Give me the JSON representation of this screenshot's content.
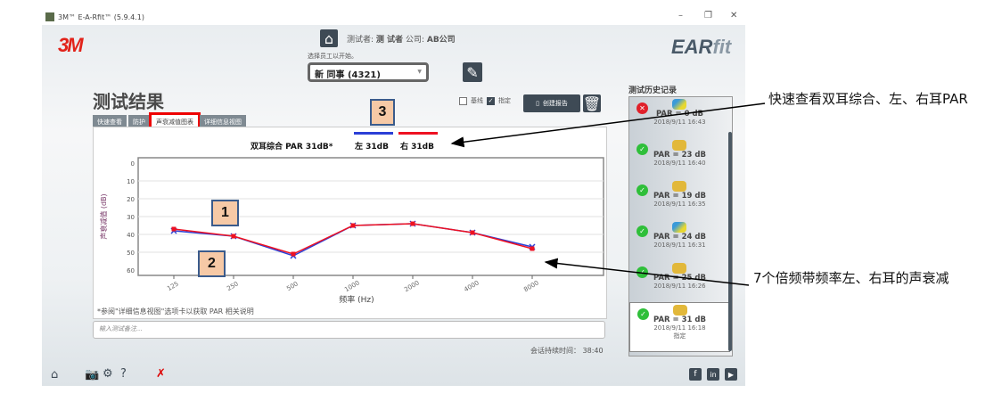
{
  "window": {
    "title": "3M™ E-A-Rfit™ (5.9.4.1)",
    "controls": [
      "–",
      "❐",
      "✕"
    ]
  },
  "header": {
    "logo": "3M",
    "brand_prefix": "EAR",
    "brand_suffix": "fit",
    "tester_label": "测试者:",
    "tester": "测 试者",
    "company_label": "公司:",
    "company": "AB公司",
    "select_prompt": "选择员工以开始。",
    "employee": "新 同事 (4321)"
  },
  "results": {
    "title": "测试结果",
    "baseline_label": "基线",
    "baseline_checked": false,
    "assigned_label": "指定",
    "assigned_checked": true,
    "create_report": "创建报告",
    "tabs": [
      {
        "label": "快速查看"
      },
      {
        "label": "防护"
      },
      {
        "label": "声衰减值图表",
        "active": true
      },
      {
        "label": "详细信息视图"
      }
    ],
    "summary": {
      "binaural": "双耳综合 PAR 31dB*",
      "left": "左 31dB",
      "right": "右 31dB"
    },
    "footnote": "*参阅\"详细信息视图\"选项卡以获取 PAR 相关说明",
    "notes_placeholder": "输入测试备注...",
    "session_label": "会话持续时间：",
    "session_time": "38:40"
  },
  "chart_data": {
    "type": "line",
    "xlabel": "频率 (Hz)",
    "ylabel": "声衰减值 (dB)",
    "categories": [
      "125",
      "250",
      "500",
      "1000",
      "2000",
      "4000",
      "8000"
    ],
    "ylim": [
      0,
      60
    ],
    "y_inverted": true,
    "yticks": [
      0,
      10,
      20,
      30,
      40,
      50,
      60
    ],
    "grid": true,
    "series": [
      {
        "name": "左",
        "color": "#2b3fd6",
        "marker": "x",
        "values": [
          38,
          41,
          52,
          35,
          34,
          39,
          47
        ]
      },
      {
        "name": "右",
        "color": "#ee1122",
        "marker": "square",
        "values": [
          37,
          41,
          51,
          35,
          34,
          39,
          48
        ]
      }
    ]
  },
  "history": {
    "title": "测试历史记录",
    "items": [
      {
        "status": "fail",
        "icon": "corded-earplug-icon",
        "par": "PAR = 0 dB",
        "date": "2018/9/11 16:43"
      },
      {
        "status": "pass",
        "icon": "foam-earplug-icon",
        "par": "PAR = 23 dB",
        "date": "2018/9/11 16:40"
      },
      {
        "status": "pass",
        "icon": "flanged-earplug-icon",
        "par": "PAR = 19 dB",
        "date": "2018/9/11 16:35"
      },
      {
        "status": "pass",
        "icon": "corded-earplug-icon",
        "par": "PAR = 24 dB",
        "date": "2018/9/11 16:31"
      },
      {
        "status": "pass",
        "icon": "foam-earplug-icon",
        "par": "PAR = 25 dB",
        "date": "2018/9/11 16:26"
      },
      {
        "status": "pass",
        "icon": "foam-earplug-icon",
        "par": "PAR = 31 dB",
        "date": "2018/9/11 16:18",
        "tag": "指定",
        "selected": true
      }
    ]
  },
  "annotations": {
    "box1": "1",
    "box2": "2",
    "box3": "3",
    "callout1": "快速查看双耳综合、左、右耳PAR",
    "callout2": "7个倍频带频率左、右耳的声衰减"
  },
  "colors": {
    "left": "#2b3fd6",
    "right": "#ee1122",
    "pass": "#2fbf3a",
    "fail": "#e0202a",
    "dark": "#3e4a55"
  }
}
